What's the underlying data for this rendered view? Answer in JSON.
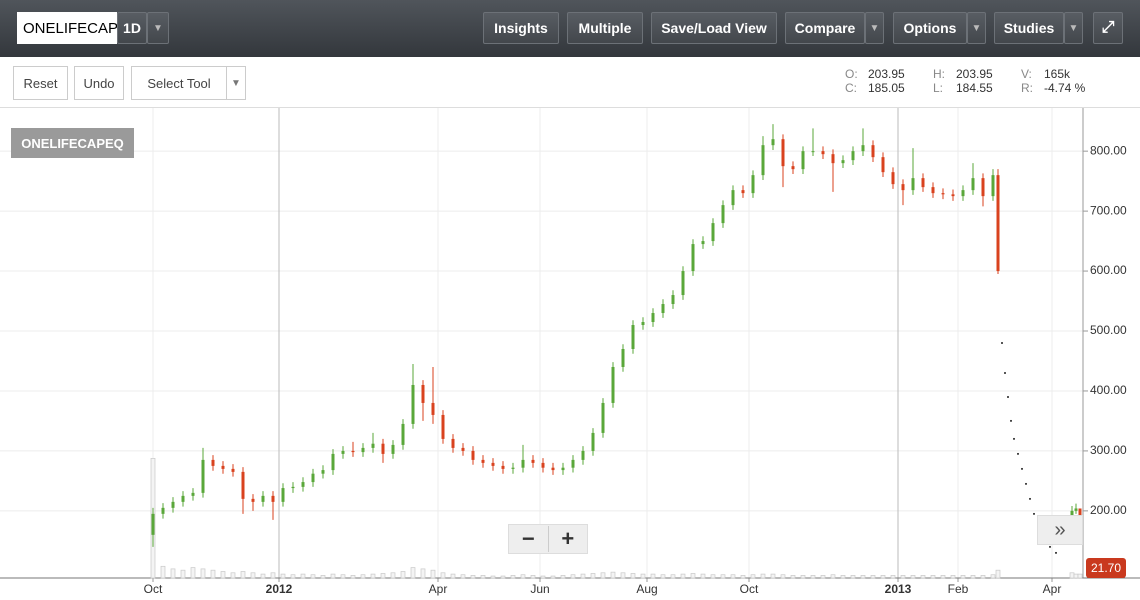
{
  "toolbar": {
    "symbol": "ONELIFECAPE",
    "interval": "1D",
    "buttons": [
      "Insights",
      "Multiple",
      "Save/Load View",
      "Compare",
      "Options",
      "Studies"
    ]
  },
  "subbar": {
    "buttons": [
      "Reset",
      "Undo"
    ],
    "select_tool": "Select Tool"
  },
  "readout": [
    {
      "label": "O:",
      "value": "203.95"
    },
    {
      "label": "H:",
      "value": "203.95"
    },
    {
      "label": "V:",
      "value": "165k"
    },
    {
      "label": "C:",
      "value": "185.05"
    },
    {
      "label": "L:",
      "value": "184.55"
    },
    {
      "label": "R:",
      "value": "-4.74 %"
    }
  ],
  "chart_data": {
    "type": "candlestick",
    "legend": "ONELIFECAPEQ",
    "up_color": "#5aa73a",
    "down_color": "#d9421e",
    "grid": true,
    "price_tag": "21.70",
    "x": [
      0,
      5,
      10,
      15,
      20,
      25,
      30,
      35,
      40,
      45,
      50,
      55,
      60,
      65,
      70,
      75,
      80,
      85,
      90,
      95,
      100,
      105,
      110,
      115,
      120,
      125,
      130,
      135,
      140,
      145,
      150,
      155,
      160,
      165,
      170,
      175,
      180,
      185,
      190,
      195,
      200,
      205,
      210,
      215,
      220,
      225,
      230,
      235,
      240,
      245,
      250,
      255,
      260,
      265,
      270,
      275,
      280,
      285,
      290,
      295,
      300,
      305,
      310,
      315,
      320,
      325,
      330,
      335,
      340,
      345,
      350,
      355,
      360,
      365,
      370,
      375,
      380,
      385,
      390,
      395,
      400,
      405,
      410,
      415,
      420,
      422.5,
      459.5,
      461.5,
      463.5
    ],
    "open": [
      160,
      195,
      205,
      215,
      225,
      230,
      285,
      275,
      270,
      265,
      220,
      215,
      225,
      215,
      238,
      240,
      248,
      262,
      268,
      295,
      300,
      298,
      305,
      312,
      295,
      310,
      345,
      410,
      380,
      360,
      320,
      305,
      300,
      285,
      280,
      275,
      270,
      272,
      285,
      280,
      272,
      268,
      272,
      285,
      300,
      330,
      380,
      440,
      470,
      510,
      515,
      530,
      545,
      560,
      600,
      645,
      650,
      680,
      710,
      735,
      730,
      760,
      810,
      820,
      775,
      770,
      800,
      800,
      795,
      780,
      785,
      800,
      810,
      790,
      765,
      745,
      735,
      755,
      740,
      730,
      728,
      725,
      735,
      755,
      725,
      760,
      190,
      200,
      203.95
    ],
    "high": [
      205,
      213,
      223,
      233,
      238,
      305,
      293,
      283,
      278,
      273,
      228,
      233,
      233,
      246,
      248,
      256,
      270,
      276,
      303,
      308,
      315,
      313,
      330,
      320,
      318,
      353,
      445,
      418,
      440,
      368,
      328,
      313,
      308,
      293,
      288,
      283,
      280,
      310,
      293,
      288,
      280,
      280,
      293,
      308,
      338,
      388,
      448,
      478,
      518,
      523,
      538,
      553,
      568,
      608,
      653,
      658,
      688,
      718,
      743,
      743,
      768,
      825,
      845,
      828,
      783,
      808,
      838,
      808,
      803,
      793,
      808,
      838,
      818,
      798,
      773,
      753,
      805,
      763,
      748,
      738,
      736,
      743,
      780,
      763,
      770,
      770,
      208,
      212,
      203.95
    ],
    "low": [
      140,
      187,
      197,
      207,
      217,
      222,
      267,
      262,
      257,
      195,
      200,
      207,
      185,
      207,
      230,
      232,
      240,
      254,
      260,
      287,
      290,
      290,
      297,
      280,
      287,
      302,
      337,
      350,
      345,
      312,
      297,
      292,
      277,
      272,
      267,
      262,
      262,
      264,
      272,
      264,
      260,
      260,
      264,
      277,
      292,
      322,
      372,
      432,
      462,
      502,
      507,
      522,
      537,
      552,
      592,
      637,
      642,
      672,
      702,
      722,
      722,
      752,
      802,
      740,
      762,
      762,
      792,
      787,
      732,
      772,
      777,
      792,
      782,
      757,
      737,
      710,
      727,
      732,
      722,
      720,
      717,
      717,
      727,
      708,
      717,
      595,
      185,
      195,
      184.55
    ],
    "close": [
      195,
      205,
      215,
      225,
      230,
      285,
      275,
      270,
      265,
      220,
      215,
      225,
      215,
      238,
      240,
      248,
      262,
      268,
      295,
      300,
      298,
      305,
      312,
      295,
      310,
      345,
      410,
      380,
      360,
      320,
      305,
      300,
      285,
      280,
      275,
      270,
      272,
      285,
      280,
      272,
      268,
      272,
      285,
      300,
      330,
      380,
      440,
      470,
      510,
      515,
      530,
      545,
      560,
      600,
      645,
      650,
      680,
      710,
      735,
      730,
      760,
      810,
      820,
      775,
      770,
      800,
      800,
      795,
      780,
      785,
      800,
      810,
      790,
      765,
      745,
      735,
      755,
      740,
      730,
      728,
      725,
      735,
      755,
      725,
      760,
      600,
      200,
      204,
      185.05
    ],
    "volume": [
      920,
      90,
      70,
      60,
      80,
      70,
      60,
      50,
      40,
      50,
      40,
      30,
      40,
      30,
      25,
      30,
      25,
      20,
      30,
      25,
      20,
      25,
      30,
      35,
      40,
      50,
      80,
      70,
      60,
      40,
      30,
      25,
      20,
      20,
      15,
      15,
      20,
      25,
      20,
      15,
      15,
      20,
      25,
      30,
      35,
      40,
      45,
      40,
      35,
      30,
      30,
      25,
      25,
      30,
      35,
      30,
      25,
      25,
      25,
      20,
      25,
      30,
      30,
      25,
      20,
      20,
      20,
      20,
      25,
      20,
      20,
      20,
      20,
      20,
      20,
      20,
      20,
      20,
      20,
      20,
      20,
      20,
      20,
      20,
      25,
      60,
      40,
      30,
      30
    ],
    "vlim": [
      0,
      1000
    ],
    "dots": {
      "x": [
        424.5,
        426,
        427.5,
        429,
        430.5,
        432.5,
        434.5,
        436.5,
        438.5,
        440.5,
        443,
        446,
        448.5,
        451.5
      ],
      "values": [
        480,
        430,
        390,
        350,
        320,
        295,
        270,
        245,
        220,
        195,
        175,
        155,
        140,
        130
      ]
    },
    "xlim": [
      -76.5,
      465
    ],
    "xticks": [
      {
        "value": 0,
        "label": "Oct"
      },
      {
        "value": 63,
        "label": "2012"
      },
      {
        "value": 142.5,
        "label": "Apr"
      },
      {
        "value": 193.5,
        "label": "Jun"
      },
      {
        "value": 247,
        "label": "Aug"
      },
      {
        "value": 298,
        "label": "Oct"
      },
      {
        "value": 372.5,
        "label": "2013"
      },
      {
        "value": 402.5,
        "label": "Feb"
      },
      {
        "value": 449.5,
        "label": "Apr"
      }
    ],
    "ylim": [
      88,
      872
    ],
    "yticks": [
      {
        "value": 200,
        "label": "200.00"
      },
      {
        "value": 300,
        "label": "300.00"
      },
      {
        "value": 400,
        "label": "400.00"
      },
      {
        "value": 500,
        "label": "500.00"
      },
      {
        "value": 600,
        "label": "600.00"
      },
      {
        "value": 700,
        "label": "700.00"
      },
      {
        "value": 800,
        "label": "800.00"
      }
    ]
  }
}
